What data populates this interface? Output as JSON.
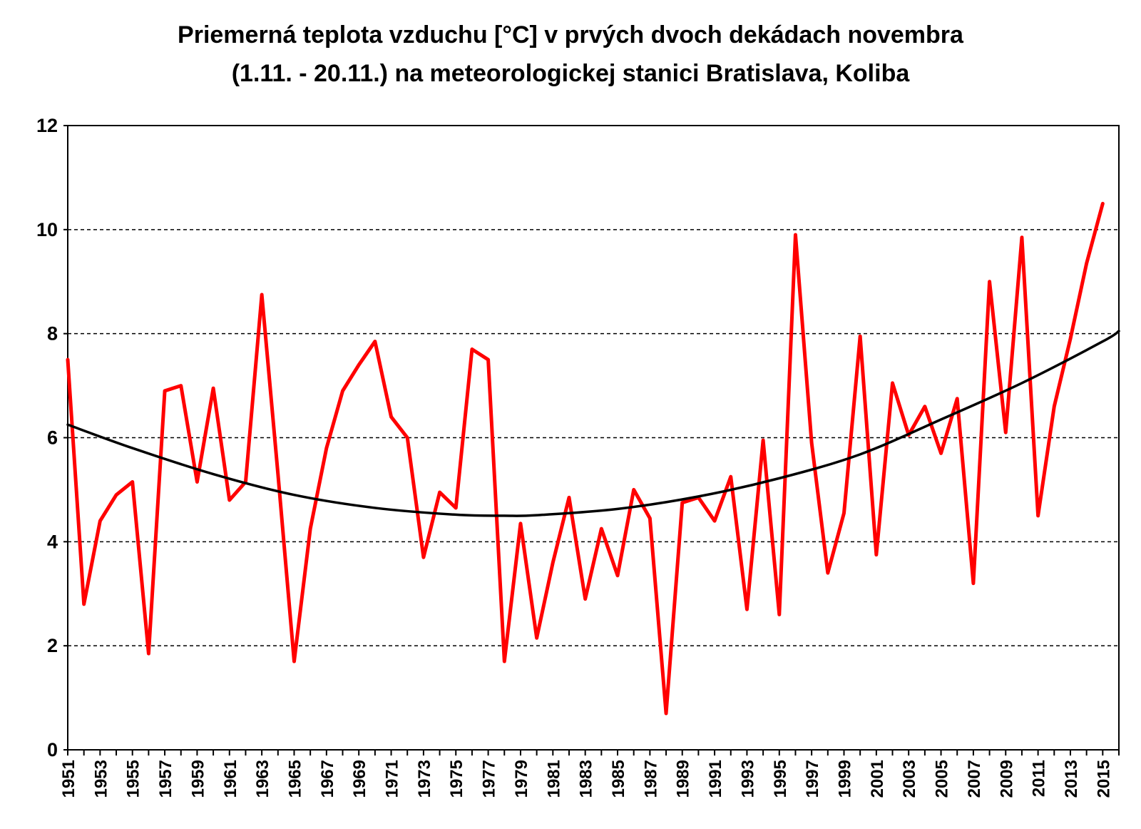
{
  "chart_data": {
    "type": "line",
    "title_line1": "Priemerná teplota vzduchu [°C] v prvých dvoch dekádach novembra",
    "title_line2": "(1.11. - 20.11.) na meteorologickej stanici Bratislava, Koliba",
    "xlabel": "",
    "ylabel": "",
    "ylim": [
      0,
      12
    ],
    "yticks": [
      "0",
      "2",
      "4",
      "6",
      "8",
      "10",
      "12"
    ],
    "xlim": [
      1951,
      2016
    ],
    "xtick_labels": [
      "1951",
      "1953",
      "1955",
      "1957",
      "1959",
      "1961",
      "1963",
      "1965",
      "1967",
      "1969",
      "1971",
      "1973",
      "1975",
      "1977",
      "1979",
      "1981",
      "1983",
      "1985",
      "1987",
      "1989",
      "1991",
      "1993",
      "1995",
      "1997",
      "1999",
      "2001",
      "2003",
      "2005",
      "2007",
      "2009",
      "2011",
      "2013",
      "2015"
    ],
    "grid": "horizontal dashed",
    "series": [
      {
        "name": "temperature",
        "color": "#ff0000",
        "x": [
          1951,
          1952,
          1953,
          1954,
          1955,
          1956,
          1957,
          1958,
          1959,
          1960,
          1961,
          1962,
          1963,
          1964,
          1965,
          1966,
          1967,
          1968,
          1969,
          1970,
          1971,
          1972,
          1973,
          1974,
          1975,
          1976,
          1977,
          1978,
          1979,
          1980,
          1981,
          1982,
          1983,
          1984,
          1985,
          1986,
          1987,
          1988,
          1989,
          1990,
          1991,
          1992,
          1993,
          1994,
          1995,
          1996,
          1997,
          1998,
          1999,
          2000,
          2001,
          2002,
          2003,
          2004,
          2005,
          2006,
          2007,
          2008,
          2009,
          2010,
          2011,
          2012,
          2013,
          2014,
          2015
        ],
        "values": [
          7.5,
          2.8,
          4.4,
          4.9,
          5.15,
          1.85,
          6.9,
          7.0,
          5.15,
          6.95,
          4.8,
          5.15,
          8.75,
          5.3,
          1.7,
          4.25,
          5.8,
          6.9,
          7.4,
          7.85,
          6.4,
          6.0,
          3.7,
          4.95,
          4.65,
          7.7,
          7.5,
          1.7,
          4.35,
          2.15,
          3.6,
          4.85,
          2.9,
          4.25,
          3.35,
          5.0,
          4.45,
          0.7,
          4.75,
          4.85,
          4.4,
          5.25,
          2.7,
          5.95,
          2.6,
          9.9,
          5.9,
          3.4,
          4.55,
          7.95,
          3.75,
          7.05,
          6.05,
          6.6,
          5.7,
          6.75,
          3.2,
          9.0,
          6.1,
          9.85,
          4.5,
          6.6,
          7.9,
          9.35,
          10.5
        ]
      },
      {
        "name": "polynomial trend",
        "color": "#000000",
        "x": [
          1951,
          1955,
          1960,
          1965,
          1970,
          1975,
          1978,
          1980,
          1985,
          1990,
          1995,
          2000,
          2005,
          2010,
          2015,
          2016
        ],
        "values": [
          6.25,
          5.8,
          5.3,
          4.9,
          4.65,
          4.52,
          4.5,
          4.51,
          4.63,
          4.87,
          5.22,
          5.68,
          6.35,
          7.05,
          7.85,
          8.05
        ]
      }
    ]
  }
}
